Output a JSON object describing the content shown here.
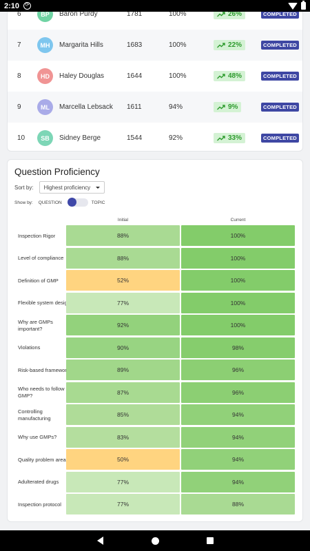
{
  "status_bar": {
    "time": "2:10"
  },
  "leaderboard": [
    {
      "rank": "6",
      "initials": "BP",
      "avatar_color": "#6fd3a3",
      "name": "Baron Purdy",
      "score": "1781",
      "pct": "100%",
      "growth": "26%",
      "status": "COMPLETED"
    },
    {
      "rank": "7",
      "initials": "MH",
      "avatar_color": "#7ec6ee",
      "name": "Margarita Hills",
      "score": "1683",
      "pct": "100%",
      "growth": "22%",
      "status": "COMPLETED"
    },
    {
      "rank": "8",
      "initials": "HD",
      "avatar_color": "#f09494",
      "name": "Haley Douglas",
      "score": "1644",
      "pct": "100%",
      "growth": "48%",
      "status": "COMPLETED"
    },
    {
      "rank": "9",
      "initials": "ML",
      "avatar_color": "#a9abe8",
      "name": "Marcella Lebsack",
      "score": "1611",
      "pct": "94%",
      "growth": "9%",
      "status": "COMPLETED"
    },
    {
      "rank": "10",
      "initials": "SB",
      "avatar_color": "#7dd6b6",
      "name": "Sidney Berge",
      "score": "1544",
      "pct": "92%",
      "growth": "33%",
      "status": "COMPLETED"
    }
  ],
  "proficiency": {
    "title": "Question Proficiency",
    "sort_label": "Sort by:",
    "sort_value": "Highest proficiency",
    "show_label": "Show by:",
    "show_option_left": "QUESTION",
    "show_option_right": "TOPIC",
    "col_initial": "Initial",
    "col_current": "Current",
    "rows": [
      {
        "question": "Inspection Rigor",
        "initial": "88%",
        "current": "100%",
        "initial_color": "#a9da93",
        "current_color": "#83cc6a"
      },
      {
        "question": "Level of compliance",
        "initial": "88%",
        "current": "100%",
        "initial_color": "#a9da93",
        "current_color": "#83cc6a"
      },
      {
        "question": "Definition of GMP",
        "initial": "52%",
        "current": "100%",
        "initial_color": "#ffd480",
        "current_color": "#83cc6a"
      },
      {
        "question": "Flexible system design",
        "initial": "77%",
        "current": "100%",
        "initial_color": "#c8e8b8",
        "current_color": "#83cc6a"
      },
      {
        "question": "Why are GMPs important?",
        "initial": "92%",
        "current": "100%",
        "initial_color": "#93d27c",
        "current_color": "#83cc6a"
      },
      {
        "question": "Violations",
        "initial": "90%",
        "current": "98%",
        "initial_color": "#98d482",
        "current_color": "#86cd6d"
      },
      {
        "question": "Risk-based framework",
        "initial": "89%",
        "current": "96%",
        "initial_color": "#a1d78a",
        "current_color": "#8ccf73"
      },
      {
        "question": "Who needs to follow GMP?",
        "initial": "87%",
        "current": "96%",
        "initial_color": "#a8da91",
        "current_color": "#8ccf73"
      },
      {
        "question": "Controlling manufacturing",
        "initial": "85%",
        "current": "94%",
        "initial_color": "#afdc98",
        "current_color": "#91d179"
      },
      {
        "question": "Why use GMPs?",
        "initial": "83%",
        "current": "94%",
        "initial_color": "#b4de9e",
        "current_color": "#91d179"
      },
      {
        "question": "Quality problem areas",
        "initial": "50%",
        "current": "94%",
        "initial_color": "#ffd480",
        "current_color": "#91d179"
      },
      {
        "question": "Adulterated drugs",
        "initial": "77%",
        "current": "94%",
        "initial_color": "#c8e8b8",
        "current_color": "#91d179"
      },
      {
        "question": "Inspection protocol",
        "initial": "77%",
        "current": "88%",
        "initial_color": "#c8e8b8",
        "current_color": "#a9da93"
      }
    ]
  }
}
